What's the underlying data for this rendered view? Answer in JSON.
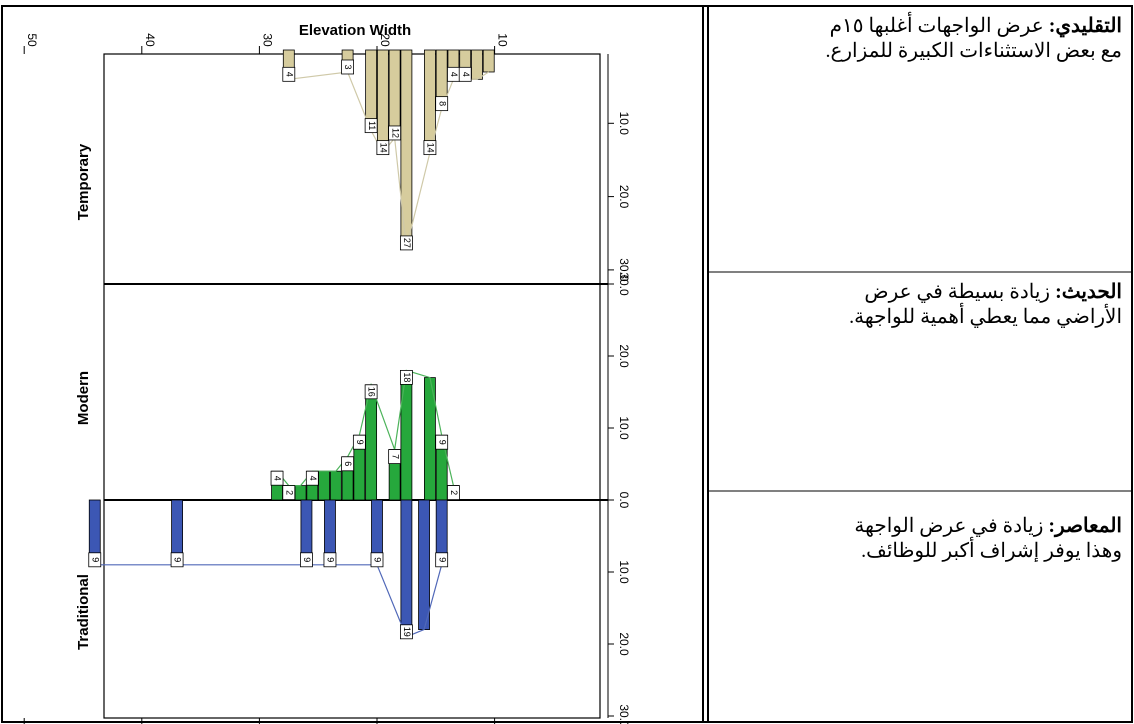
{
  "chart_data": {
    "type": "bar",
    "title": "Elevation Width",
    "x_axis": {
      "ticks": [
        "50",
        "40",
        "30",
        "20",
        "10"
      ],
      "range": [
        0,
        54
      ],
      "reversed": true
    },
    "count_axis": {
      "ticks": [
        "0.0",
        "10.0",
        "20.0",
        "30.0"
      ],
      "range": [
        0,
        31
      ],
      "per_panel": true
    },
    "series": [
      {
        "name": "Temporary",
        "color": "#d6cc9d",
        "bars": [
          {
            "x": 27.5,
            "count": 4,
            "label": "4"
          },
          {
            "x": 22.5,
            "count": 3,
            "label": "3"
          },
          {
            "x": 20.5,
            "count": 11,
            "label": "11"
          },
          {
            "x": 19.5,
            "count": 14,
            "label": "14"
          },
          {
            "x": 18.5,
            "count": 12,
            "label": "12"
          },
          {
            "x": 17.5,
            "count": 27,
            "label": "27"
          },
          {
            "x": 15.5,
            "count": 14,
            "label": "14"
          },
          {
            "x": 14.5,
            "count": 8,
            "label": "8"
          },
          {
            "x": 13.5,
            "count": 4,
            "label": "4"
          },
          {
            "x": 12.5,
            "count": 4,
            "label": "4"
          },
          {
            "x": 11.5,
            "count": 4,
            "label": ""
          },
          {
            "x": 10.5,
            "count": 3,
            "label": ""
          }
        ]
      },
      {
        "name": "Modern",
        "color": "#26a83c",
        "bars": [
          {
            "x": 28.5,
            "count": 4,
            "label": "4"
          },
          {
            "x": 27.5,
            "count": 2,
            "label": "2"
          },
          {
            "x": 26.5,
            "count": 2,
            "label": ""
          },
          {
            "x": 25.5,
            "count": 4,
            "label": "4"
          },
          {
            "x": 24.5,
            "count": 4,
            "label": ""
          },
          {
            "x": 23.5,
            "count": 4,
            "label": ""
          },
          {
            "x": 22.5,
            "count": 6,
            "label": "6"
          },
          {
            "x": 21.5,
            "count": 9,
            "label": "9"
          },
          {
            "x": 20.5,
            "count": 16,
            "label": "16"
          },
          {
            "x": 18.5,
            "count": 7,
            "label": "7"
          },
          {
            "x": 17.5,
            "count": 18,
            "label": "18"
          },
          {
            "x": 15.5,
            "count": 17,
            "label": ""
          },
          {
            "x": 14.5,
            "count": 9,
            "label": "9"
          },
          {
            "x": 13.5,
            "count": 2,
            "label": "2"
          }
        ]
      },
      {
        "name": "Traditional",
        "color": "#3c57b4",
        "bars": [
          {
            "x": 44,
            "count": 9,
            "label": "9"
          },
          {
            "x": 37,
            "count": 9,
            "label": "9"
          },
          {
            "x": 26,
            "count": 9,
            "label": "9"
          },
          {
            "x": 24,
            "count": 9,
            "label": "9"
          },
          {
            "x": 20,
            "count": 9,
            "label": "9"
          },
          {
            "x": 17.5,
            "count": 19,
            "label": "19"
          },
          {
            "x": 16,
            "count": 18,
            "label": ""
          },
          {
            "x": 14.5,
            "count": 9,
            "label": "9"
          }
        ]
      }
    ]
  },
  "descriptions": [
    {
      "heading": "التقليدي:",
      "lines": [
        " عرض الواجهات أغلبها ١٥م",
        "مع بعض الاستثناءات الكبيرة للمزارع."
      ]
    },
    {
      "heading": "الحديث:",
      "lines": [
        " زيادة بسيطة في عرض",
        "الأراضي مما يعطي أهمية للواجهة."
      ]
    },
    {
      "heading": "المعاصر:",
      "lines": [
        " زيادة في عرض الواجهة",
        "وهذا يوفر إشراف أكبر للوظائف."
      ]
    }
  ]
}
